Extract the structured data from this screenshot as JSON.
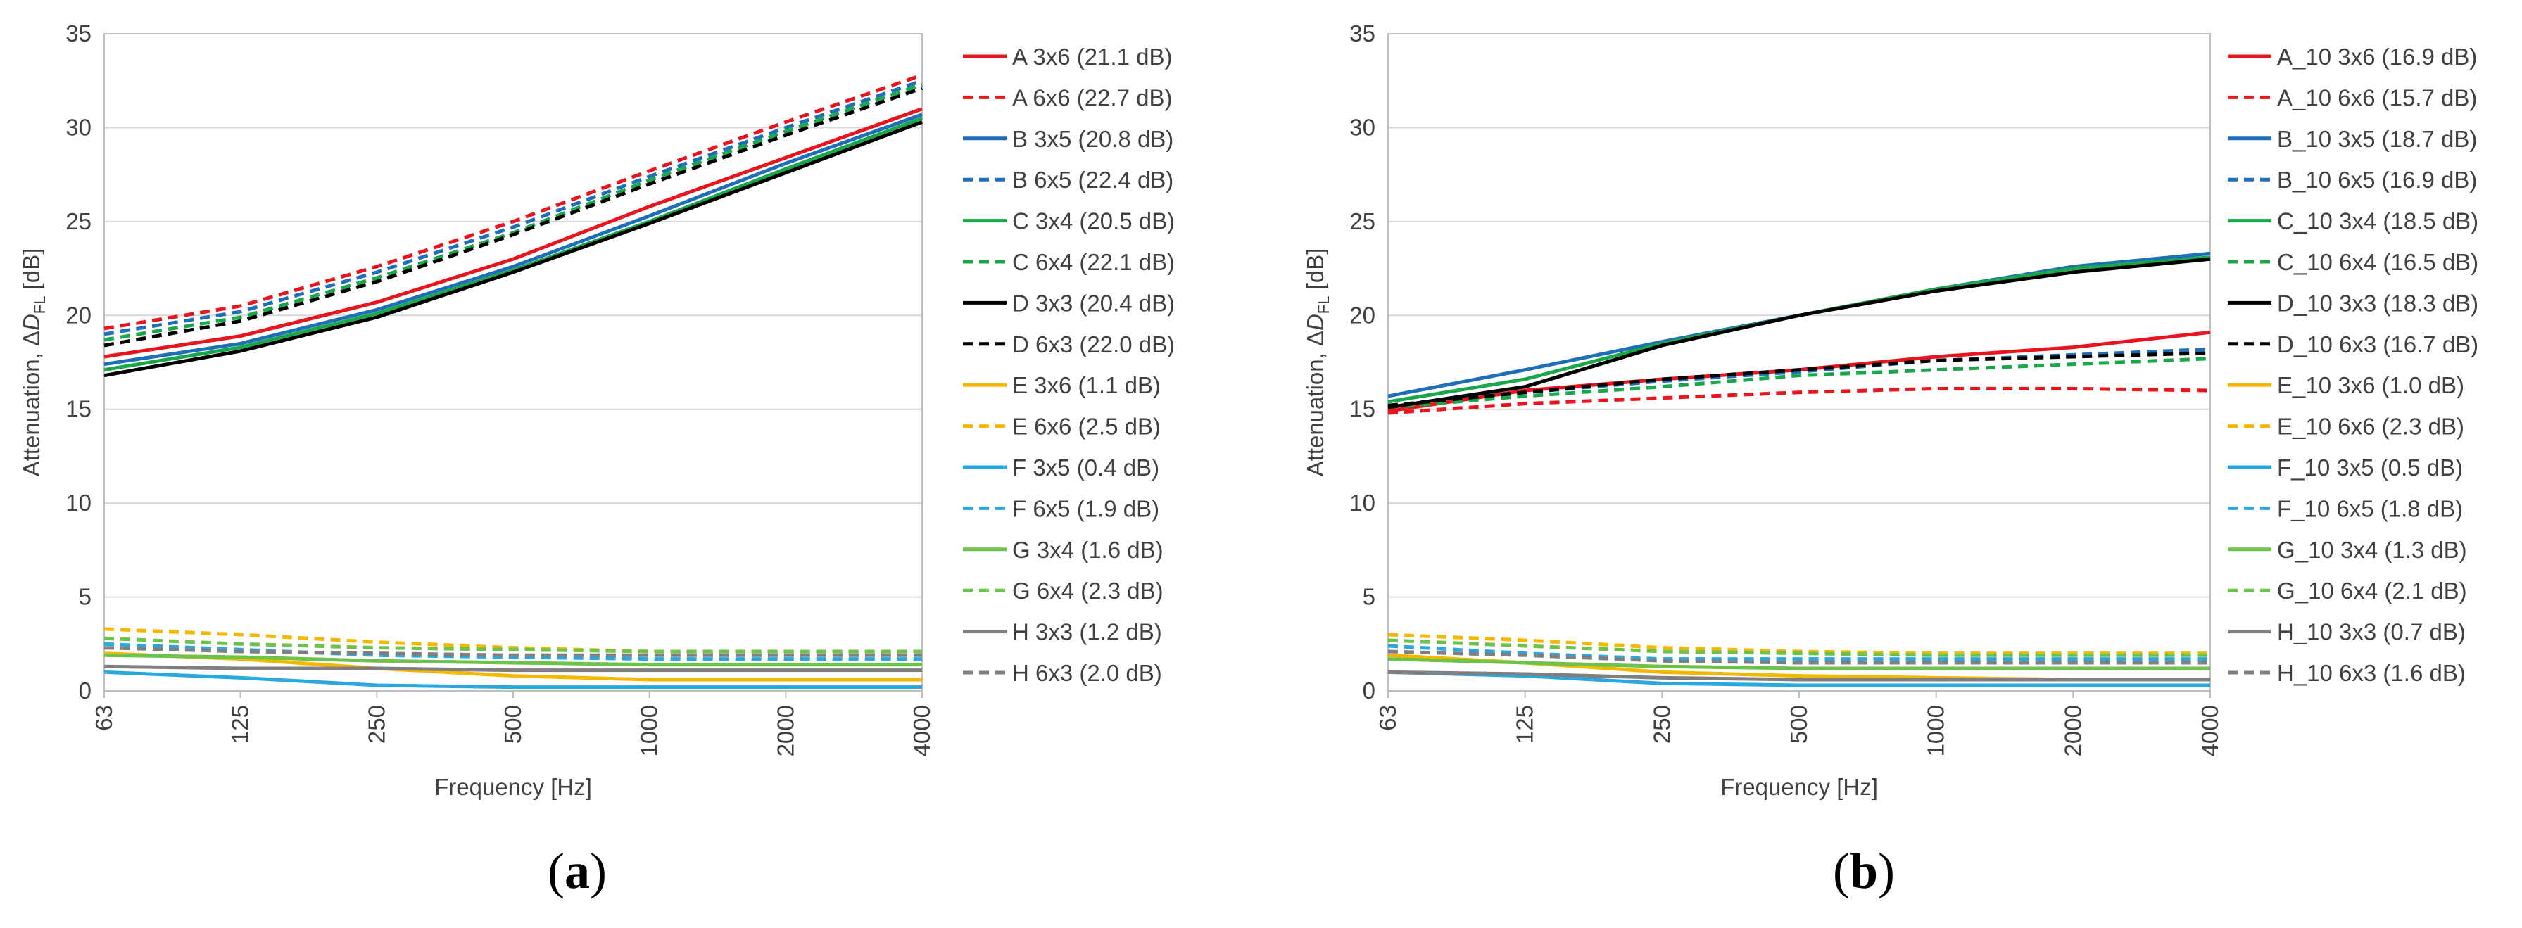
{
  "chart_data": [
    {
      "type": "line",
      "panel_label": "(a)",
      "panel_letter": "a",
      "xlabel": "Frequency [Hz]",
      "ylabel_prefix": "Attenuation, Δ",
      "ylabel_var": "D",
      "ylabel_sub": "FL",
      "ylabel_suffix": " [dB]",
      "categories": [
        "63",
        "125",
        "250",
        "500",
        "1000",
        "2000",
        "4000"
      ],
      "ylim": [
        0,
        35
      ],
      "yticks": [
        0,
        5,
        10,
        15,
        20,
        25,
        30,
        35
      ],
      "grid": true,
      "legend_position": "right",
      "series": [
        {
          "name": "A 3x6 (21.1 dB)",
          "color": "#e8141e",
          "dashed": false,
          "values": [
            17.8,
            18.9,
            20.7,
            23.0,
            25.8,
            28.4,
            31.0
          ]
        },
        {
          "name": "A 6x6 (22.7 dB)",
          "color": "#e8141e",
          "dashed": true,
          "values": [
            19.3,
            20.5,
            22.6,
            25.0,
            27.7,
            30.3,
            32.8
          ]
        },
        {
          "name": "B 3x5 (20.8 dB)",
          "color": "#1f6fb8",
          "dashed": false,
          "values": [
            17.4,
            18.5,
            20.3,
            22.6,
            25.3,
            28.1,
            30.7
          ]
        },
        {
          "name": "B 6x5 (22.4 dB)",
          "color": "#1f6fb8",
          "dashed": true,
          "values": [
            19.0,
            20.2,
            22.3,
            24.7,
            27.4,
            30.0,
            32.5
          ]
        },
        {
          "name": "C 3x4 (20.5 dB)",
          "color": "#1aa64a",
          "dashed": false,
          "values": [
            17.1,
            18.3,
            20.1,
            22.4,
            25.0,
            27.8,
            30.5
          ]
        },
        {
          "name": "C 6x4 (22.1 dB)",
          "color": "#1aa64a",
          "dashed": true,
          "values": [
            18.7,
            19.9,
            22.0,
            24.4,
            27.2,
            29.8,
            32.3
          ]
        },
        {
          "name": "D 3x3 (20.4 dB)",
          "color": "#000000",
          "dashed": false,
          "values": [
            16.8,
            18.1,
            19.9,
            22.3,
            24.9,
            27.6,
            30.3
          ]
        },
        {
          "name": "D 6x3 (22.0 dB)",
          "color": "#000000",
          "dashed": true,
          "values": [
            18.4,
            19.7,
            21.8,
            24.3,
            27.0,
            29.6,
            32.1
          ]
        },
        {
          "name": "E 3x6 (1.1 dB)",
          "color": "#f5b800",
          "dashed": false,
          "values": [
            2.0,
            1.7,
            1.2,
            0.8,
            0.6,
            0.6,
            0.6
          ]
        },
        {
          "name": "E 6x6 (2.5 dB)",
          "color": "#f5b800",
          "dashed": true,
          "values": [
            3.3,
            3.0,
            2.6,
            2.3,
            2.1,
            2.1,
            2.1
          ]
        },
        {
          "name": "F 3x5 (0.4 dB)",
          "color": "#29a8e0",
          "dashed": false,
          "values": [
            1.0,
            0.7,
            0.3,
            0.2,
            0.2,
            0.2,
            0.2
          ]
        },
        {
          "name": "F 6x5 (1.9 dB)",
          "color": "#29a8e0",
          "dashed": true,
          "values": [
            2.5,
            2.2,
            1.9,
            1.8,
            1.7,
            1.7,
            1.7
          ]
        },
        {
          "name": "G 3x4 (1.6 dB)",
          "color": "#6cc24a",
          "dashed": false,
          "values": [
            1.9,
            1.8,
            1.6,
            1.5,
            1.4,
            1.4,
            1.4
          ]
        },
        {
          "name": "G 6x4 (2.3 dB)",
          "color": "#6cc24a",
          "dashed": true,
          "values": [
            2.8,
            2.5,
            2.3,
            2.2,
            2.1,
            2.1,
            2.1
          ]
        },
        {
          "name": "H 3x3 (1.2 dB)",
          "color": "#7f7f7f",
          "dashed": false,
          "values": [
            1.3,
            1.2,
            1.2,
            1.1,
            1.1,
            1.1,
            1.1
          ]
        },
        {
          "name": "H 6x3 (2.0 dB)",
          "color": "#7f7f7f",
          "dashed": true,
          "values": [
            2.3,
            2.1,
            2.0,
            1.9,
            1.9,
            1.9,
            1.9
          ]
        }
      ]
    },
    {
      "type": "line",
      "panel_label": "(b)",
      "panel_letter": "b",
      "xlabel": "Frequency [Hz]",
      "ylabel_prefix": "Attenuation, Δ",
      "ylabel_var": "D",
      "ylabel_sub": "FL",
      "ylabel_suffix": " [dB]",
      "categories": [
        "63",
        "125",
        "250",
        "500",
        "1000",
        "2000",
        "4000"
      ],
      "ylim": [
        0,
        35
      ],
      "yticks": [
        0,
        5,
        10,
        15,
        20,
        25,
        30,
        35
      ],
      "grid": true,
      "legend_position": "right",
      "series": [
        {
          "name": "A_10 3x6 (16.9 dB)",
          "color": "#e8141e",
          "dashed": false,
          "values": [
            14.9,
            16.0,
            16.6,
            17.1,
            17.8,
            18.3,
            19.1
          ]
        },
        {
          "name": "A_10 6x6 (15.7 dB)",
          "color": "#e8141e",
          "dashed": true,
          "values": [
            14.8,
            15.3,
            15.6,
            15.9,
            16.1,
            16.1,
            16.0
          ]
        },
        {
          "name": "B_10 3x5 (18.7 dB)",
          "color": "#1f6fb8",
          "dashed": false,
          "values": [
            15.7,
            17.1,
            18.6,
            20.0,
            21.4,
            22.6,
            23.3
          ]
        },
        {
          "name": "B_10 6x5 (16.9 dB)",
          "color": "#1f6fb8",
          "dashed": true,
          "values": [
            15.2,
            15.9,
            16.5,
            17.0,
            17.6,
            17.9,
            18.2
          ]
        },
        {
          "name": "C_10 3x4 (18.5 dB)",
          "color": "#1aa64a",
          "dashed": false,
          "values": [
            15.4,
            16.6,
            18.5,
            20.0,
            21.4,
            22.5,
            23.1
          ]
        },
        {
          "name": "C_10 6x4 (16.5 dB)",
          "color": "#1aa64a",
          "dashed": true,
          "values": [
            15.1,
            15.7,
            16.2,
            16.8,
            17.1,
            17.4,
            17.7
          ]
        },
        {
          "name": "D_10 3x3 (18.3 dB)",
          "color": "#000000",
          "dashed": false,
          "values": [
            15.1,
            16.2,
            18.4,
            20.0,
            21.3,
            22.3,
            23.0
          ]
        },
        {
          "name": "D_10 6x3 (16.7 dB)",
          "color": "#000000",
          "dashed": true,
          "values": [
            15.2,
            15.9,
            16.6,
            17.1,
            17.6,
            17.8,
            18.0
          ]
        },
        {
          "name": "E_10 3x6 (1.0 dB)",
          "color": "#f5b800",
          "dashed": false,
          "values": [
            1.9,
            1.5,
            1.0,
            0.8,
            0.7,
            0.6,
            0.6
          ]
        },
        {
          "name": "E_10 6x6 (2.3 dB)",
          "color": "#f5b800",
          "dashed": true,
          "values": [
            3.0,
            2.7,
            2.3,
            2.1,
            2.0,
            2.0,
            2.0
          ]
        },
        {
          "name": "F_10 3x5 (0.5 dB)",
          "color": "#29a8e0",
          "dashed": false,
          "values": [
            1.0,
            0.8,
            0.4,
            0.3,
            0.3,
            0.3,
            0.3
          ]
        },
        {
          "name": "F_10 6x5 (1.8 dB)",
          "color": "#29a8e0",
          "dashed": true,
          "values": [
            2.4,
            2.0,
            1.7,
            1.7,
            1.7,
            1.7,
            1.7
          ]
        },
        {
          "name": "G_10 3x4 (1.3 dB)",
          "color": "#6cc24a",
          "dashed": false,
          "values": [
            1.7,
            1.5,
            1.3,
            1.2,
            1.2,
            1.2,
            1.2
          ]
        },
        {
          "name": "G_10 6x4 (2.1 dB)",
          "color": "#6cc24a",
          "dashed": true,
          "values": [
            2.7,
            2.4,
            2.1,
            2.0,
            1.9,
            1.9,
            1.9
          ]
        },
        {
          "name": "H_10 3x3 (0.7 dB)",
          "color": "#7f7f7f",
          "dashed": false,
          "values": [
            1.0,
            0.9,
            0.7,
            0.6,
            0.6,
            0.6,
            0.6
          ]
        },
        {
          "name": "H_10 6x3 (1.6 dB)",
          "color": "#7f7f7f",
          "dashed": true,
          "values": [
            2.1,
            1.9,
            1.6,
            1.5,
            1.5,
            1.5,
            1.5
          ]
        }
      ]
    }
  ]
}
